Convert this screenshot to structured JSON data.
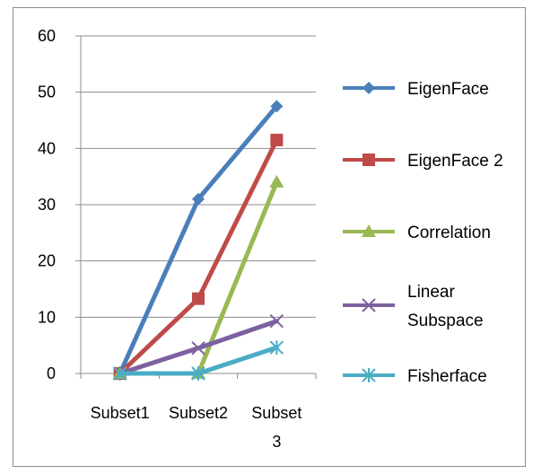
{
  "chart_data": {
    "type": "line",
    "title": "",
    "xlabel": "",
    "ylabel": "",
    "categories": [
      "Subset1",
      "Subset2",
      "Subset 3"
    ],
    "ylim": [
      0,
      60
    ],
    "yticks": [
      0,
      10,
      20,
      30,
      40,
      50,
      60
    ],
    "grid": true,
    "legend_position": "right",
    "series": [
      {
        "name": "EigenFace",
        "color": "#4a7ebb",
        "marker": "diamond",
        "values": [
          0,
          31,
          47.5
        ]
      },
      {
        "name": "EigenFace 2",
        "color": "#be4b48",
        "marker": "square",
        "values": [
          0,
          13.3,
          41.5
        ]
      },
      {
        "name": "Correlation",
        "color": "#98b954",
        "marker": "triangle",
        "values": [
          0,
          0,
          34
        ]
      },
      {
        "name": "Linear Subspace",
        "color": "#7d60a0",
        "marker": "x",
        "values": [
          0,
          4.5,
          9.3
        ]
      },
      {
        "name": "Fisherface",
        "color": "#4bacc6",
        "marker": "star",
        "values": [
          0,
          0,
          4.6
        ]
      }
    ]
  }
}
